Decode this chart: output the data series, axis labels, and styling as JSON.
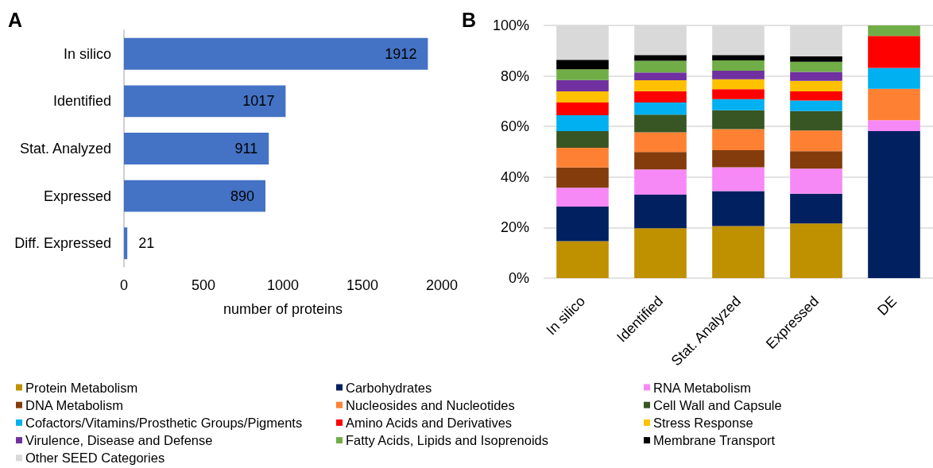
{
  "chart_data": [
    {
      "type": "bar",
      "title": "A",
      "orientation": "horizontal",
      "categories": [
        "In silico",
        "Identified",
        "Stat. Analyzed",
        "Expressed",
        "Diff. Expressed"
      ],
      "values": [
        1912,
        1017,
        911,
        890,
        21
      ],
      "color": "#4472c4",
      "xlim": [
        0,
        2000
      ],
      "xticks": [
        0,
        500,
        1000,
        1500,
        2000
      ],
      "xlabel": "number of proteins",
      "data_labels": true
    },
    {
      "type": "bar",
      "title": "B",
      "stacked": true,
      "categories": [
        "In silico",
        "Identified",
        "Stat. Analyzed",
        "Expressed",
        "DE"
      ],
      "ylim": [
        0,
        100
      ],
      "yticks": [
        {
          "value": 0,
          "label": "0%"
        },
        {
          "value": 20,
          "label": "20%"
        },
        {
          "value": 40,
          "label": "40%"
        },
        {
          "value": 60,
          "label": "60%"
        },
        {
          "value": 80,
          "label": "80%"
        },
        {
          "value": 100,
          "label": "100%"
        }
      ],
      "grid": "y",
      "legend": "bottom",
      "series": [
        {
          "name": "Protein Metabolism",
          "color": "#bf9000",
          "values": [
            14.6,
            19.7,
            20.6,
            21.6,
            0
          ]
        },
        {
          "name": "Carbohydrates",
          "color": "#002060",
          "values": [
            13.7,
            13.3,
            13.8,
            11.8,
            58.2
          ]
        },
        {
          "name": "RNA Metabolism",
          "color": "#f689f5",
          "values": [
            7.5,
            10.0,
            9.5,
            9.9,
            4.3
          ]
        },
        {
          "name": "DNA Metabolism",
          "color": "#843c0c",
          "values": [
            8.0,
            6.9,
            6.7,
            6.9,
            0
          ]
        },
        {
          "name": "Nucleosides and Nucleotides",
          "color": "#fe8133",
          "values": [
            7.8,
            7.8,
            8.4,
            8.2,
            12.4
          ]
        },
        {
          "name": "Cell Wall and Capsule",
          "color": "#375623",
          "values": [
            6.6,
            7.0,
            7.4,
            7.7,
            0
          ]
        },
        {
          "name": "Cofactors/Vitamins/Prosthetic Groups/Pigments",
          "color": "#00b0f0",
          "values": [
            6.3,
            4.8,
            4.4,
            4.2,
            8.3
          ]
        },
        {
          "name": "Amino Acids and Derivatives",
          "color": "#ff0000",
          "values": [
            5.0,
            4.5,
            4.0,
            3.6,
            12.6
          ]
        },
        {
          "name": "Stress Response",
          "color": "#ffc000",
          "values": [
            4.4,
            4.3,
            3.9,
            4.2,
            0
          ]
        },
        {
          "name": "Virulence, Disease and Defense",
          "color": "#7030a0",
          "values": [
            4.5,
            3.1,
            3.4,
            3.5,
            0
          ]
        },
        {
          "name": "Fatty Acids, Lipids and Isoprenoids",
          "color": "#70ad47",
          "values": [
            4.2,
            4.6,
            4.1,
            4.0,
            4.2
          ]
        },
        {
          "name": "Membrane Transport",
          "color": "#000000",
          "values": [
            3.8,
            2.3,
            2.1,
            2.1,
            0
          ]
        },
        {
          "name": "Other SEED Categories",
          "color": "#d9d9d9",
          "values": [
            13.6,
            11.7,
            11.7,
            12.3,
            0
          ]
        }
      ]
    }
  ]
}
